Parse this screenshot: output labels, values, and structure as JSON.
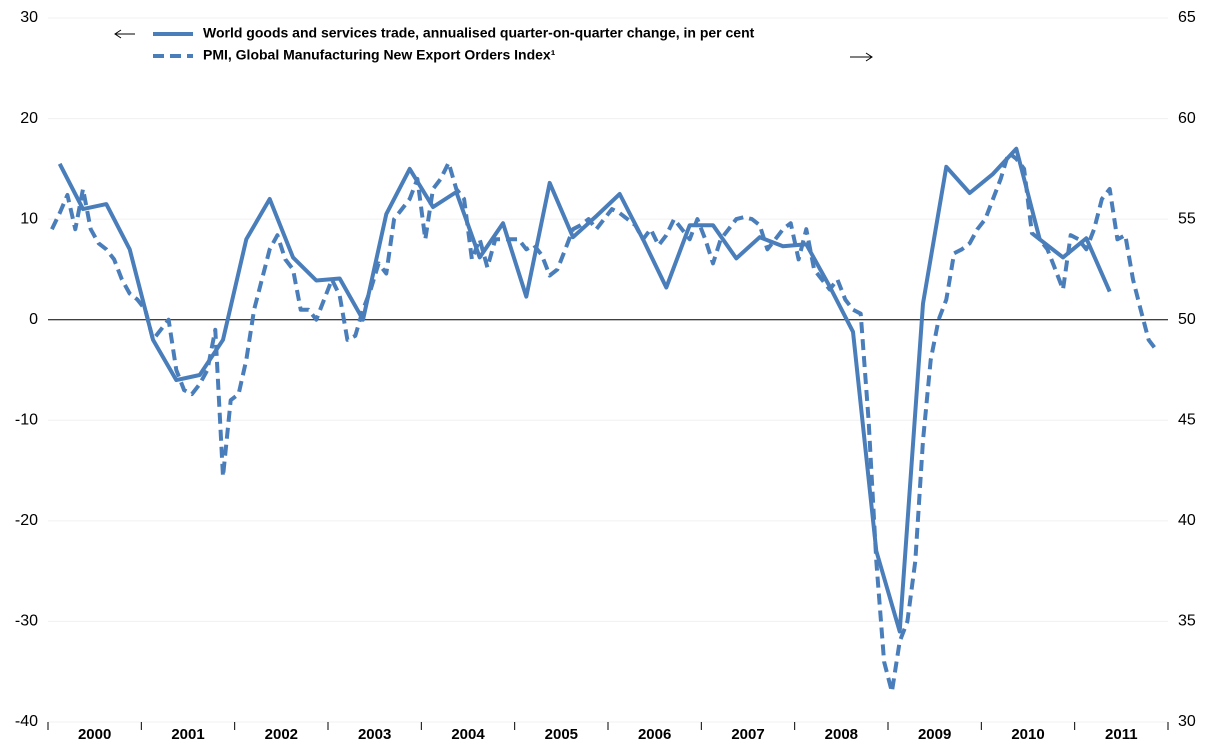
{
  "chart_data": {
    "type": "line",
    "categories": [
      "2000",
      "2001",
      "2002",
      "2003",
      "2004",
      "2005",
      "2006",
      "2007",
      "2008",
      "2009",
      "2010",
      "2011"
    ],
    "xlim": [
      2000,
      2012
    ],
    "ylim": [
      -40,
      30
    ],
    "yticks": [
      -40,
      -30,
      -20,
      -10,
      0,
      10,
      20,
      30
    ],
    "y2lim": [
      30,
      65
    ],
    "y2ticks": [
      30,
      35,
      40,
      45,
      50,
      55,
      60,
      65
    ],
    "grid": true,
    "series": [
      {
        "name": "World goods and services trade, annualised quarter-on-quarter change, in per cent",
        "color": "#4a7ebb",
        "dash": false,
        "x": [
          2000.125,
          2000.375,
          2000.625,
          2000.875,
          2001.125,
          2001.375,
          2001.625,
          2001.875,
          2002.125,
          2002.375,
          2002.625,
          2002.875,
          2003.125,
          2003.375,
          2003.625,
          2003.875,
          2004.125,
          2004.375,
          2004.625,
          2004.875,
          2005.125,
          2005.375,
          2005.625,
          2005.875,
          2006.125,
          2006.375,
          2006.625,
          2006.875,
          2007.125,
          2007.375,
          2007.625,
          2007.875,
          2008.125,
          2008.375,
          2008.625,
          2008.875,
          2009.125,
          2009.375,
          2009.625,
          2009.875,
          2010.125,
          2010.375,
          2010.625,
          2010.875,
          2011.125,
          2011.375
        ],
        "values": [
          15.5,
          11,
          11.5,
          7,
          -2,
          -6,
          -5.5,
          -2,
          8,
          12,
          6.2,
          3.9,
          4.1,
          0,
          10.5,
          15,
          11.2,
          12.7,
          6.2,
          9.6,
          2.3,
          13.6,
          8.2,
          10.3,
          12.5,
          8,
          3.2,
          9.4,
          9.4,
          6.1,
          8.2,
          7.3,
          7.5,
          3.3,
          -1.2,
          -23,
          -31,
          1.6,
          15.2,
          12.6,
          14.5,
          17,
          8,
          6.2,
          8.1,
          2.8
        ]
      },
      {
        "name": "PMI,  Global Manufacturing New Export Orders Index¹",
        "color": "#4a7ebb",
        "dash": true,
        "axis": "y2",
        "x": [
          2000.042,
          2000.125,
          2000.208,
          2000.292,
          2000.375,
          2000.458,
          2000.542,
          2000.625,
          2000.708,
          2000.792,
          2000.875,
          2000.958,
          2001.042,
          2001.125,
          2001.208,
          2001.292,
          2001.375,
          2001.458,
          2001.542,
          2001.625,
          2001.708,
          2001.792,
          2001.875,
          2001.958,
          2002.042,
          2002.125,
          2002.208,
          2002.292,
          2002.375,
          2002.458,
          2002.542,
          2002.625,
          2002.708,
          2002.792,
          2002.875,
          2002.958,
          2003.042,
          2003.125,
          2003.208,
          2003.292,
          2003.375,
          2003.458,
          2003.542,
          2003.625,
          2003.708,
          2003.792,
          2003.875,
          2003.958,
          2004.042,
          2004.125,
          2004.208,
          2004.292,
          2004.375,
          2004.458,
          2004.542,
          2004.625,
          2004.708,
          2004.792,
          2004.875,
          2004.958,
          2005.042,
          2005.125,
          2005.208,
          2005.292,
          2005.375,
          2005.458,
          2005.542,
          2005.625,
          2005.708,
          2005.792,
          2005.875,
          2005.958,
          2006.042,
          2006.125,
          2006.208,
          2006.292,
          2006.375,
          2006.458,
          2006.542,
          2006.625,
          2006.708,
          2006.792,
          2006.875,
          2006.958,
          2007.042,
          2007.125,
          2007.208,
          2007.292,
          2007.375,
          2007.458,
          2007.542,
          2007.625,
          2007.708,
          2007.792,
          2007.875,
          2007.958,
          2008.042,
          2008.125,
          2008.208,
          2008.292,
          2008.375,
          2008.458,
          2008.542,
          2008.625,
          2008.708,
          2008.792,
          2008.875,
          2008.958,
          2009.042,
          2009.125,
          2009.208,
          2009.292,
          2009.375,
          2009.458,
          2009.542,
          2009.625,
          2009.708,
          2009.792,
          2009.875,
          2009.958,
          2010.042,
          2010.125,
          2010.208,
          2010.292,
          2010.375,
          2010.458,
          2010.542,
          2010.625,
          2010.708,
          2010.792,
          2010.875,
          2010.958,
          2011.042,
          2011.125,
          2011.208,
          2011.292,
          2011.375,
          2011.458,
          2011.542,
          2011.625,
          2011.708,
          2011.792,
          2011.875
        ],
        "values": [
          54.5,
          55.3,
          56.2,
          54.5,
          56.5,
          54.5,
          53.8,
          53.5,
          53,
          52,
          51.3,
          51,
          50.5,
          49,
          49.5,
          50,
          47.5,
          46.5,
          46.3,
          46.8,
          47.5,
          49.5,
          42.2,
          46,
          46.3,
          48,
          50.5,
          52,
          53.5,
          54.2,
          53,
          52.5,
          50.5,
          50.5,
          50,
          51,
          52,
          51.2,
          49,
          49.2,
          50.5,
          51.5,
          52.8,
          52.3,
          55,
          55.5,
          56,
          57,
          54,
          56.5,
          57,
          57.8,
          56.5,
          56,
          53,
          54,
          52.6,
          54,
          54,
          54,
          54,
          53.5,
          53.7,
          53.2,
          52.2,
          52.5,
          53.5,
          54.5,
          54.7,
          55,
          54.5,
          55,
          55.5,
          55.3,
          55,
          54.7,
          54,
          54.5,
          53.7,
          54.2,
          55,
          54.5,
          54,
          55,
          54,
          52.8,
          54,
          54.5,
          55,
          55.1,
          55,
          54.7,
          53.5,
          54,
          54.5,
          54.8,
          53,
          54.5,
          52.5,
          52,
          51.5,
          52,
          51,
          50.5,
          50.3,
          45,
          38,
          33,
          31.5,
          34,
          35,
          38,
          44,
          48,
          50,
          51,
          53.3,
          53.5,
          53.8,
          54.5,
          55,
          56,
          57,
          58.3,
          58,
          57.5,
          54.3,
          54,
          53.5,
          52.5,
          51.5,
          54.2,
          54,
          53.5,
          54.5,
          56,
          56.5,
          54,
          54.2,
          52,
          50.5,
          49,
          48.5
        ]
      }
    ]
  }
}
